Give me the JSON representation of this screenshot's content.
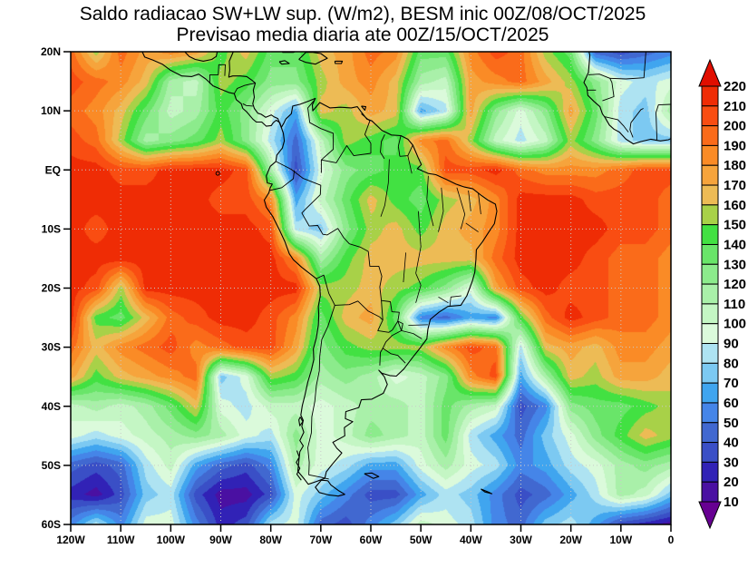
{
  "title": {
    "line1": "Saldo radiacao SW+LW sup. (W/m2), BESM inic 00Z/08/OCT/2025",
    "line2": "Previsao media diaria ate 00Z/15/OCT/2025"
  },
  "axes": {
    "x_ticks": [
      "120W",
      "110W",
      "100W",
      "90W",
      "80W",
      "70W",
      "60W",
      "50W",
      "40W",
      "30W",
      "20W",
      "10W",
      "0"
    ],
    "y_ticks": [
      "20N",
      "10N",
      "EQ",
      "10S",
      "20S",
      "30S",
      "40S",
      "50S",
      "60S"
    ]
  },
  "colorbar": {
    "tick_labels": [
      "220",
      "210",
      "200",
      "190",
      "180",
      "170",
      "160",
      "150",
      "140",
      "130",
      "120",
      "110",
      "100",
      "90",
      "80",
      "70",
      "60",
      "50",
      "40",
      "30",
      "20",
      "10"
    ]
  },
  "chart_data": {
    "type": "heatmap",
    "title": "Saldo radiacao SW+LW sup. (W/m2), BESM inic 00Z/08/OCT/2025",
    "subtitle": "Previsao media diaria ate 00Z/15/OCT/2025",
    "units": "W/m2",
    "lon_min": -120,
    "lon_max": 0,
    "lat_min": -60,
    "lat_max": 20,
    "grid_step_deg": 5,
    "levels": [
      10,
      20,
      30,
      40,
      50,
      60,
      70,
      80,
      90,
      100,
      110,
      120,
      130,
      140,
      150,
      160,
      170,
      180,
      190,
      200,
      210,
      220
    ],
    "palette_low_to_high": [
      "#670092",
      "#4a10a2",
      "#3122b6",
      "#3a4fc6",
      "#4168d0",
      "#4585e8",
      "#40a5ef",
      "#7cc9f2",
      "#aee3f2",
      "#dbfadb",
      "#c4f6c4",
      "#a9f0a9",
      "#8ceb8c",
      "#69e569",
      "#42e142",
      "#a8d148",
      "#edbb55",
      "#f6a43c",
      "#fa8b26",
      "#fa6b1a",
      "#f94d12",
      "#ef2c05",
      "#e10e00"
    ],
    "lats_north_to_south": [
      20,
      15,
      10,
      5,
      0,
      -5,
      -10,
      -15,
      -20,
      -25,
      -30,
      -35,
      -40,
      -45,
      -50,
      -55,
      -60
    ],
    "lons_west_to_east": [
      -120,
      -115,
      -110,
      -105,
      -100,
      -95,
      -90,
      -85,
      -80,
      -75,
      -70,
      -65,
      -60,
      -55,
      -50,
      -45,
      -40,
      -35,
      -30,
      -25,
      -20,
      -15,
      -10,
      -5,
      0
    ],
    "values_north_to_south": [
      [
        195,
        155,
        195,
        175,
        185,
        175,
        145,
        165,
        135,
        135,
        165,
        175,
        195,
        185,
        135,
        135,
        185,
        205,
        195,
        155,
        135,
        45,
        35,
        45,
        55
      ],
      [
        205,
        195,
        185,
        165,
        115,
        105,
        155,
        145,
        125,
        125,
        155,
        175,
        185,
        165,
        115,
        105,
        175,
        185,
        195,
        175,
        155,
        125,
        95,
        85,
        95
      ],
      [
        195,
        185,
        165,
        135,
        105,
        115,
        145,
        125,
        95,
        65,
        165,
        155,
        175,
        165,
        65,
        85,
        175,
        125,
        95,
        125,
        175,
        135,
        85,
        75,
        115
      ],
      [
        205,
        195,
        155,
        115,
        125,
        135,
        155,
        125,
        85,
        45,
        105,
        155,
        145,
        135,
        185,
        195,
        155,
        105,
        85,
        105,
        155,
        125,
        85,
        75,
        75
      ],
      [
        215,
        215,
        205,
        205,
        215,
        215,
        215,
        205,
        115,
        35,
        95,
        125,
        135,
        145,
        145,
        205,
        205,
        215,
        195,
        185,
        185,
        185,
        195,
        205,
        205
      ],
      [
        215,
        215,
        215,
        215,
        215,
        215,
        205,
        205,
        185,
        65,
        105,
        135,
        165,
        145,
        135,
        155,
        165,
        185,
        215,
        215,
        215,
        205,
        205,
        205,
        195
      ],
      [
        215,
        205,
        215,
        215,
        215,
        215,
        215,
        215,
        205,
        85,
        75,
        125,
        155,
        165,
        145,
        165,
        175,
        185,
        215,
        215,
        215,
        215,
        205,
        205,
        195
      ],
      [
        215,
        215,
        215,
        215,
        215,
        215,
        215,
        215,
        215,
        185,
        115,
        145,
        165,
        165,
        165,
        165,
        165,
        195,
        215,
        215,
        215,
        205,
        195,
        195,
        185
      ],
      [
        215,
        205,
        155,
        215,
        215,
        215,
        215,
        215,
        215,
        215,
        155,
        155,
        165,
        155,
        145,
        125,
        95,
        175,
        205,
        215,
        205,
        205,
        195,
        195,
        185
      ],
      [
        215,
        145,
        135,
        165,
        195,
        205,
        215,
        215,
        205,
        185,
        135,
        165,
        175,
        135,
        55,
        45,
        65,
        55,
        145,
        195,
        215,
        205,
        195,
        195,
        185
      ],
      [
        195,
        165,
        185,
        195,
        205,
        185,
        195,
        205,
        205,
        175,
        125,
        145,
        155,
        155,
        155,
        185,
        205,
        195,
        85,
        165,
        175,
        165,
        185,
        185,
        175
      ],
      [
        175,
        145,
        165,
        175,
        185,
        195,
        75,
        95,
        155,
        145,
        115,
        125,
        115,
        95,
        105,
        125,
        185,
        205,
        65,
        115,
        165,
        155,
        175,
        175,
        165
      ],
      [
        105,
        115,
        105,
        115,
        135,
        165,
        95,
        85,
        105,
        105,
        95,
        105,
        115,
        115,
        105,
        135,
        115,
        105,
        35,
        55,
        125,
        135,
        135,
        145,
        155
      ],
      [
        95,
        85,
        95,
        105,
        115,
        125,
        115,
        95,
        85,
        125,
        95,
        105,
        125,
        115,
        105,
        135,
        85,
        65,
        45,
        75,
        95,
        125,
        145,
        165,
        155
      ],
      [
        45,
        35,
        45,
        85,
        105,
        65,
        45,
        35,
        55,
        115,
        95,
        85,
        65,
        65,
        95,
        115,
        95,
        85,
        55,
        65,
        85,
        95,
        115,
        125,
        115
      ],
      [
        25,
        15,
        35,
        75,
        85,
        35,
        15,
        15,
        35,
        95,
        75,
        55,
        35,
        35,
        65,
        85,
        75,
        55,
        35,
        45,
        65,
        85,
        115,
        105,
        75
      ],
      [
        55,
        85,
        55,
        95,
        95,
        55,
        25,
        35,
        85,
        95,
        45,
        35,
        55,
        75,
        105,
        95,
        85,
        55,
        45,
        75,
        85,
        65,
        35,
        25,
        15
      ]
    ]
  }
}
